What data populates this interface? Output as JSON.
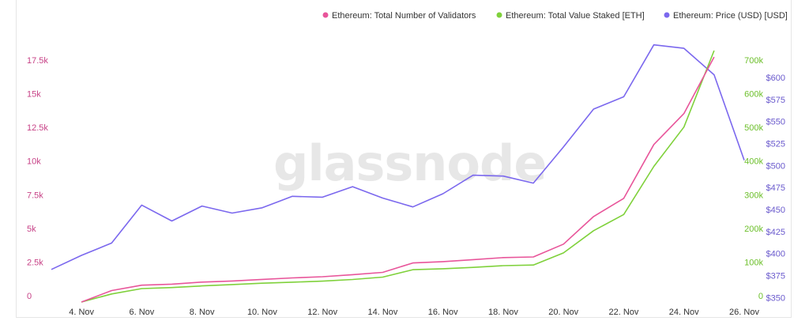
{
  "watermark": "glassnode",
  "chart_data": {
    "type": "line",
    "title": "",
    "legend": "top-right",
    "grid": false,
    "x": [
      "3. Nov",
      "4. Nov",
      "5. Nov",
      "6. Nov",
      "7. Nov",
      "8. Nov",
      "9. Nov",
      "10. Nov",
      "11. Nov",
      "12. Nov",
      "13. Nov",
      "14. Nov",
      "15. Nov",
      "16. Nov",
      "17. Nov",
      "18. Nov",
      "19. Nov",
      "20. Nov",
      "21. Nov",
      "22. Nov",
      "23. Nov",
      "24. Nov",
      "25. Nov",
      "26. Nov"
    ],
    "x_tick_labels": [
      "4. Nov",
      "6. Nov",
      "8. Nov",
      "10. Nov",
      "12. Nov",
      "14. Nov",
      "16. Nov",
      "18. Nov",
      "20. Nov",
      "22. Nov",
      "24. Nov",
      "26. Nov"
    ],
    "series": [
      {
        "name": "Ethereum: Total Number of Validators",
        "axis": "left",
        "color": "#e8559a",
        "values": [
          null,
          0,
          850,
          1250,
          1330,
          1480,
          1560,
          1680,
          1790,
          1880,
          2030,
          2200,
          2900,
          3000,
          3150,
          3300,
          3350,
          4300,
          6350,
          7700,
          11700,
          14000,
          18200,
          null
        ]
      },
      {
        "name": "Ethereum: Total Value Staked [ETH]",
        "axis": "right",
        "color": "#7fd13b",
        "values": [
          null,
          0,
          24000,
          40000,
          43000,
          48000,
          52000,
          56000,
          59000,
          62000,
          67000,
          74000,
          96000,
          99000,
          103000,
          108000,
          110000,
          146000,
          212000,
          260000,
          403000,
          520000,
          747000,
          null
        ]
      },
      {
        "name": "Ethereum: Price (USD) [USD]",
        "axis": "right2",
        "color": "#7b68ee",
        "values": [
          382,
          398,
          412,
          455,
          437,
          454,
          446,
          452,
          465,
          464,
          476,
          463,
          453,
          468,
          489,
          488,
          480,
          521,
          564,
          578,
          637,
          633,
          603,
          506
        ]
      }
    ],
    "y_left": {
      "ticks": [
        "0",
        "2.5k",
        "5k",
        "7.5k",
        "10k",
        "12.5k",
        "15k",
        "17.5k"
      ],
      "ylim": [
        0,
        19500
      ],
      "color": "#c74287"
    },
    "y_right": {
      "ticks": [
        "0",
        "100k",
        "200k",
        "300k",
        "400k",
        "500k",
        "600k",
        "700k"
      ],
      "ylim": [
        0,
        780000
      ],
      "color": "#6cbf2a"
    },
    "y_right2": {
      "ticks": [
        "$350",
        "$375",
        "$400",
        "$425",
        "$450",
        "$475",
        "$500",
        "$525",
        "$550",
        "$575",
        "$600"
      ],
      "ylim": [
        345,
        643
      ],
      "color": "#6a5acd"
    }
  }
}
